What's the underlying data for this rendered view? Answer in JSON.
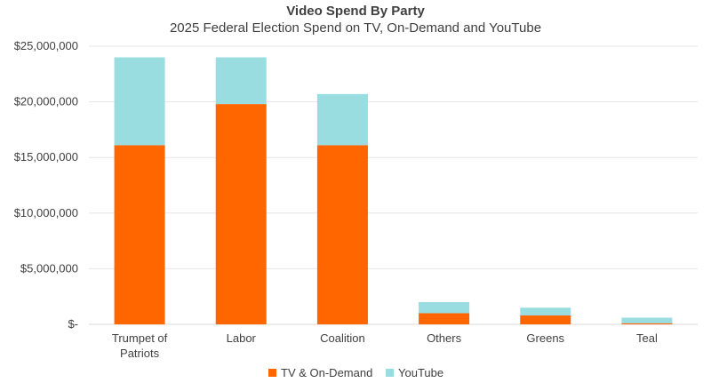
{
  "chart_data": {
    "type": "bar",
    "stacked": true,
    "title": "Video Spend By Party",
    "subtitle": "2025 Federal Election Spend on TV, On-Demand and YouTube",
    "categories": [
      "Trumpet of Patriots",
      "Labor",
      "Coalition",
      "Others",
      "Greens",
      "Teal"
    ],
    "category_lines": [
      [
        "Trumpet of",
        "Patriots"
      ],
      [
        "Labor"
      ],
      [
        "Coalition"
      ],
      [
        "Others"
      ],
      [
        "Greens"
      ],
      [
        "Teal"
      ]
    ],
    "series": [
      {
        "name": "TV & On-Demand",
        "color": "#ff6600",
        "values": [
          16100000,
          19800000,
          16100000,
          1000000,
          800000,
          100000
        ]
      },
      {
        "name": "YouTube",
        "color": "#99dde0",
        "values": [
          7900000,
          4200000,
          4600000,
          1000000,
          700000,
          500000
        ]
      }
    ],
    "ylim": [
      0,
      25000000
    ],
    "y_ticks": [
      0,
      5000000,
      10000000,
      15000000,
      20000000,
      25000000
    ],
    "y_tick_labels": [
      "$-",
      "$5,000,000",
      "$10,000,000",
      "$15,000,000",
      "$20,000,000",
      "$25,000,000"
    ],
    "grid": true,
    "legend_position": "bottom"
  }
}
